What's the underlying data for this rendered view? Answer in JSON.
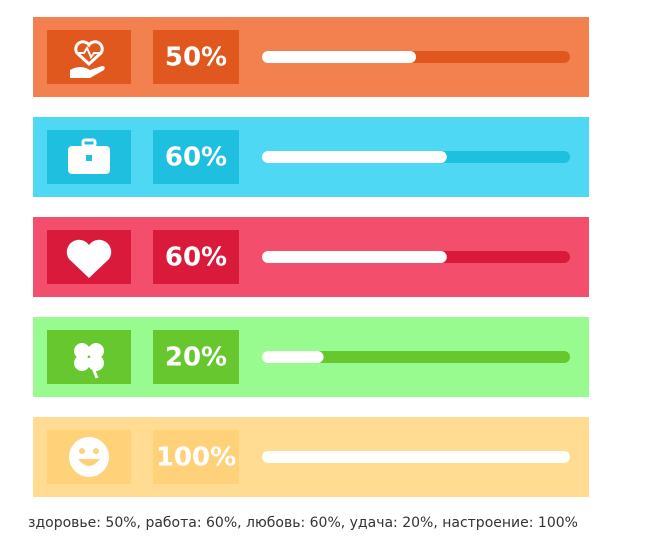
{
  "chart_data": {
    "type": "progress",
    "values": [
      50,
      60,
      60,
      20,
      100
    ],
    "value_labels": [
      "50%",
      "60%",
      "60%",
      "20%",
      "100%"
    ],
    "colors": [
      "#f2814f",
      "#4ed8f3",
      "#f34f6c",
      "#97fb8f",
      "#ffdc92"
    ],
    "dark_colors": [
      "#e0581e",
      "#1fbfe0",
      "#da1a3b",
      "#66c72f",
      "#ffd27a"
    ],
    "xlim": [
      0,
      100
    ],
    "caption": "здоровье: 50%, работа: 60%, любовь: 60%, удача: 20%, настроение: 100%"
  }
}
